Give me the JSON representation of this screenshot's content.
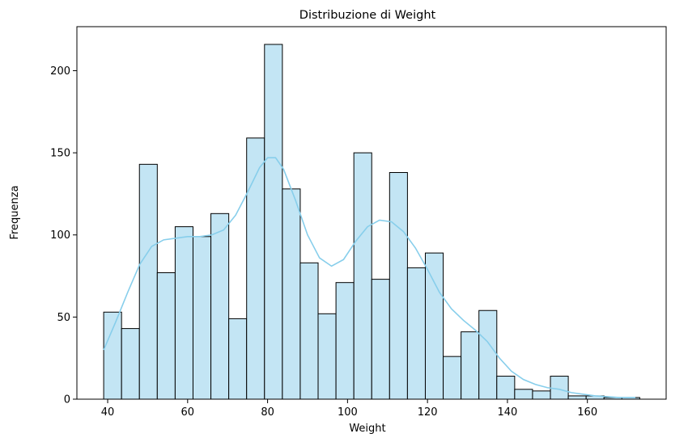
{
  "chart_data": {
    "type": "bar",
    "title": "Distribuzione di Weight",
    "xlabel": "Weight",
    "ylabel": "Frequenza",
    "xlim": [
      32.3,
      179.7
    ],
    "ylim": [
      0,
      226.8
    ],
    "x_ticks": [
      40,
      60,
      80,
      100,
      120,
      140,
      160
    ],
    "y_ticks": [
      0,
      50,
      100,
      150,
      200
    ],
    "bin_start": 39,
    "bin_width": 4.47,
    "counts": [
      53,
      43,
      143,
      77,
      105,
      99,
      113,
      49,
      159,
      216,
      128,
      83,
      52,
      71,
      150,
      73,
      138,
      80,
      89,
      26,
      41,
      54,
      14,
      6,
      5,
      14,
      2,
      2,
      1,
      1
    ],
    "kde": {
      "x": [
        39,
        42,
        45,
        48,
        51,
        54,
        57,
        60,
        63,
        66,
        69,
        72,
        75,
        78,
        80,
        82,
        84,
        87,
        90,
        93,
        96,
        99,
        102,
        105,
        108,
        111,
        114,
        117,
        120,
        123,
        126,
        129,
        132,
        135,
        138,
        141,
        144,
        147,
        150,
        153,
        156,
        159,
        162,
        165,
        168,
        172
      ],
      "y": [
        30,
        47,
        65,
        82,
        93,
        97,
        98,
        99,
        99,
        100,
        103,
        112,
        126,
        141,
        147,
        147,
        140,
        121,
        100,
        86,
        81,
        85,
        96,
        105,
        109,
        108,
        102,
        92,
        79,
        65,
        55,
        48,
        42,
        35,
        25,
        17,
        12,
        9,
        7,
        6,
        4,
        3,
        2,
        1.5,
        1,
        1
      ]
    },
    "bar_fill": "#c3e5f4",
    "kde_color": "#87ceeb",
    "grid": false,
    "legend": "none"
  }
}
